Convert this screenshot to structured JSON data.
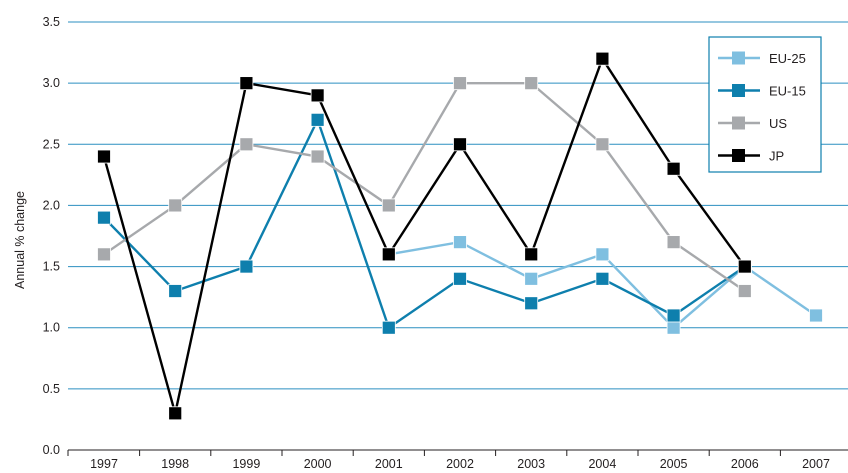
{
  "chart_data": {
    "type": "line",
    "title": "",
    "xlabel": "",
    "ylabel": "Annual % change",
    "ylim": [
      0,
      3.5
    ],
    "y_ticks": [
      "0.0",
      "0.5",
      "1.0",
      "1.5",
      "2.0",
      "2.5",
      "3.0",
      "3.5"
    ],
    "categories": [
      "1997",
      "1998",
      "1999",
      "2000",
      "2001",
      "2002",
      "2003",
      "2004",
      "2005",
      "2006",
      "2007"
    ],
    "grid": "horizontal",
    "legend_position": "top-right",
    "series": [
      {
        "name": "EU-25",
        "color": "#7fbfe0",
        "values": [
          null,
          null,
          null,
          null,
          1.6,
          1.7,
          1.4,
          1.6,
          1.0,
          1.5,
          1.1
        ]
      },
      {
        "name": "EU-15",
        "color": "#0e7fad",
        "values": [
          1.9,
          1.3,
          1.5,
          2.7,
          1.0,
          1.4,
          1.2,
          1.4,
          1.1,
          1.5,
          null
        ]
      },
      {
        "name": "US",
        "color": "#a7a9ac",
        "values": [
          1.6,
          2.0,
          2.5,
          2.4,
          2.0,
          3.0,
          3.0,
          2.5,
          1.7,
          1.3,
          null
        ]
      },
      {
        "name": "JP",
        "color": "#000000",
        "values": [
          2.4,
          0.3,
          3.0,
          2.9,
          1.6,
          2.5,
          1.6,
          3.2,
          2.3,
          1.5,
          null
        ]
      }
    ]
  }
}
